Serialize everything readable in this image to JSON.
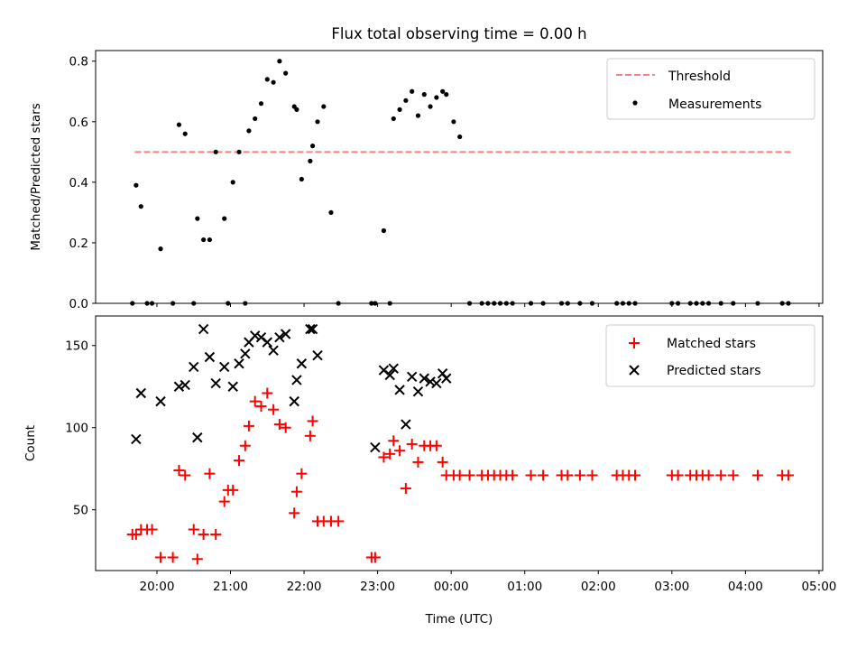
{
  "chart_data": [
    {
      "type": "scatter",
      "title": "Flux total observing time = 0.00 h",
      "ylabel": "Matched/Predicted stars",
      "xlabel": "",
      "ylim": [
        0,
        0.835
      ],
      "yticks": [
        0.0,
        0.2,
        0.4,
        0.6,
        0.8
      ],
      "ytick_labels": [
        "0.0",
        "0.2",
        "0.4",
        "0.6",
        "0.8"
      ],
      "grid": false,
      "legend_position": "top-right",
      "threshold": {
        "name": "Threshold",
        "value": 0.5,
        "x_start": "19:42",
        "x_end": "04:37",
        "color": "#ff7f7f",
        "style": "dashed"
      },
      "series": [
        {
          "name": "Measurements",
          "color": "#000000",
          "marker": "dot",
          "points": [
            [
              "19:40",
              0.0
            ],
            [
              "19:43",
              0.39
            ],
            [
              "19:47",
              0.32
            ],
            [
              "19:52",
              0.0
            ],
            [
              "19:56",
              0.0
            ],
            [
              "20:03",
              0.18
            ],
            [
              "20:13",
              0.0
            ],
            [
              "20:18",
              0.59
            ],
            [
              "20:23",
              0.56
            ],
            [
              "20:30",
              0.0
            ],
            [
              "20:33",
              0.28
            ],
            [
              "20:38",
              0.21
            ],
            [
              "20:43",
              0.21
            ],
            [
              "20:48",
              0.5
            ],
            [
              "20:55",
              0.28
            ],
            [
              "20:58",
              0.0
            ],
            [
              "21:02",
              0.4
            ],
            [
              "21:07",
              0.5
            ],
            [
              "21:12",
              0.0
            ],
            [
              "21:15",
              0.57
            ],
            [
              "21:20",
              0.61
            ],
            [
              "21:25",
              0.66
            ],
            [
              "21:30",
              0.74
            ],
            [
              "21:35",
              0.73
            ],
            [
              "21:40",
              0.8
            ],
            [
              "21:45",
              0.76
            ],
            [
              "21:52",
              0.65
            ],
            [
              "21:54",
              0.64
            ],
            [
              "21:58",
              0.41
            ],
            [
              "22:05",
              0.47
            ],
            [
              "22:07",
              0.52
            ],
            [
              "22:11",
              0.6
            ],
            [
              "22:16",
              0.65
            ],
            [
              "22:22",
              0.3
            ],
            [
              "22:28",
              0.0
            ],
            [
              "22:55",
              0.0
            ],
            [
              "22:58",
              0.0
            ],
            [
              "23:05",
              0.24
            ],
            [
              "23:10",
              0.0
            ],
            [
              "23:13",
              0.61
            ],
            [
              "23:18",
              0.64
            ],
            [
              "23:23",
              0.67
            ],
            [
              "23:28",
              0.7
            ],
            [
              "23:33",
              0.62
            ],
            [
              "23:38",
              0.69
            ],
            [
              "23:43",
              0.65
            ],
            [
              "23:48",
              0.68
            ],
            [
              "23:53",
              0.7
            ],
            [
              "23:56",
              0.69
            ],
            [
              "00:02",
              0.6
            ],
            [
              "00:07",
              0.55
            ],
            [
              "00:15",
              0.0
            ],
            [
              "00:25",
              0.0
            ],
            [
              "00:30",
              0.0
            ],
            [
              "00:35",
              0.0
            ],
            [
              "00:40",
              0.0
            ],
            [
              "00:45",
              0.0
            ],
            [
              "00:50",
              0.0
            ],
            [
              "01:05",
              0.0
            ],
            [
              "01:15",
              0.0
            ],
            [
              "01:30",
              0.0
            ],
            [
              "01:35",
              0.0
            ],
            [
              "01:45",
              0.0
            ],
            [
              "01:55",
              0.0
            ],
            [
              "02:15",
              0.0
            ],
            [
              "02:20",
              0.0
            ],
            [
              "02:25",
              0.0
            ],
            [
              "02:30",
              0.0
            ],
            [
              "03:00",
              0.0
            ],
            [
              "03:05",
              0.0
            ],
            [
              "03:15",
              0.0
            ],
            [
              "03:20",
              0.0
            ],
            [
              "03:25",
              0.0
            ],
            [
              "03:30",
              0.0
            ],
            [
              "03:40",
              0.0
            ],
            [
              "03:50",
              0.0
            ],
            [
              "04:10",
              0.0
            ],
            [
              "04:30",
              0.0
            ],
            [
              "04:35",
              0.0
            ]
          ]
        }
      ]
    },
    {
      "type": "scatter",
      "title": "",
      "xlabel": "Time (UTC)",
      "ylabel": "Count",
      "ylim": [
        13,
        168
      ],
      "yticks": [
        50,
        100,
        150
      ],
      "ytick_labels": [
        "50",
        "100",
        "150"
      ],
      "xlim": [
        "19:10",
        "05:03"
      ],
      "xticks": [
        "20:00",
        "21:00",
        "22:00",
        "23:00",
        "00:00",
        "01:00",
        "02:00",
        "03:00",
        "04:00",
        "05:00"
      ],
      "xtick_labels": [
        "20:00",
        "21:00",
        "22:00",
        "23:00",
        "00:00",
        "01:00",
        "02:00",
        "03:00",
        "04:00",
        "05:00"
      ],
      "grid": false,
      "legend_position": "top-right",
      "series": [
        {
          "name": "Matched stars",
          "color": "#ff0000",
          "marker": "plus",
          "points": [
            [
              "19:40",
              35
            ],
            [
              "19:43",
              35
            ],
            [
              "19:47",
              38
            ],
            [
              "19:52",
              38
            ],
            [
              "19:56",
              38
            ],
            [
              "20:03",
              21
            ],
            [
              "20:13",
              21
            ],
            [
              "20:18",
              74
            ],
            [
              "20:23",
              71
            ],
            [
              "20:30",
              38
            ],
            [
              "20:33",
              20
            ],
            [
              "20:38",
              35
            ],
            [
              "20:43",
              72
            ],
            [
              "20:48",
              35
            ],
            [
              "20:55",
              55
            ],
            [
              "20:58",
              62
            ],
            [
              "21:02",
              62
            ],
            [
              "21:07",
              80
            ],
            [
              "21:12",
              89
            ],
            [
              "21:15",
              101
            ],
            [
              "21:20",
              116
            ],
            [
              "21:25",
              113
            ],
            [
              "21:30",
              121
            ],
            [
              "21:35",
              111
            ],
            [
              "21:40",
              102
            ],
            [
              "21:45",
              100
            ],
            [
              "21:52",
              48
            ],
            [
              "21:54",
              61
            ],
            [
              "21:58",
              72
            ],
            [
              "22:05",
              95
            ],
            [
              "22:07",
              104
            ],
            [
              "22:11",
              43
            ],
            [
              "22:16",
              43
            ],
            [
              "22:22",
              43
            ],
            [
              "22:28",
              43
            ],
            [
              "22:55",
              21
            ],
            [
              "22:58",
              21
            ],
            [
              "23:05",
              82
            ],
            [
              "23:10",
              84
            ],
            [
              "23:13",
              92
            ],
            [
              "23:18",
              86
            ],
            [
              "23:23",
              63
            ],
            [
              "23:28",
              90
            ],
            [
              "23:33",
              79
            ],
            [
              "23:38",
              89
            ],
            [
              "23:43",
              89
            ],
            [
              "23:48",
              89
            ],
            [
              "23:53",
              79
            ],
            [
              "23:56",
              71
            ],
            [
              "00:02",
              71
            ],
            [
              "00:07",
              71
            ],
            [
              "00:15",
              71
            ],
            [
              "00:25",
              71
            ],
            [
              "00:30",
              71
            ],
            [
              "00:35",
              71
            ],
            [
              "00:40",
              71
            ],
            [
              "00:45",
              71
            ],
            [
              "00:50",
              71
            ],
            [
              "01:05",
              71
            ],
            [
              "01:15",
              71
            ],
            [
              "01:30",
              71
            ],
            [
              "01:35",
              71
            ],
            [
              "01:45",
              71
            ],
            [
              "01:55",
              71
            ],
            [
              "02:15",
              71
            ],
            [
              "02:20",
              71
            ],
            [
              "02:25",
              71
            ],
            [
              "02:30",
              71
            ],
            [
              "03:00",
              71
            ],
            [
              "03:05",
              71
            ],
            [
              "03:15",
              71
            ],
            [
              "03:20",
              71
            ],
            [
              "03:25",
              71
            ],
            [
              "03:30",
              71
            ],
            [
              "03:40",
              71
            ],
            [
              "03:50",
              71
            ],
            [
              "04:10",
              71
            ],
            [
              "04:30",
              71
            ],
            [
              "04:35",
              71
            ]
          ]
        },
        {
          "name": "Predicted stars",
          "color": "#000000",
          "marker": "cross",
          "points": [
            [
              "19:43",
              93
            ],
            [
              "19:47",
              121
            ],
            [
              "20:03",
              116
            ],
            [
              "20:18",
              125
            ],
            [
              "20:23",
              126
            ],
            [
              "20:30",
              137
            ],
            [
              "20:33",
              94
            ],
            [
              "20:38",
              160
            ],
            [
              "20:43",
              143
            ],
            [
              "20:48",
              127
            ],
            [
              "20:55",
              137
            ],
            [
              "21:02",
              125
            ],
            [
              "21:07",
              139
            ],
            [
              "21:12",
              145
            ],
            [
              "21:15",
              152
            ],
            [
              "21:20",
              156
            ],
            [
              "21:25",
              155
            ],
            [
              "21:30",
              152
            ],
            [
              "21:35",
              147
            ],
            [
              "21:40",
              155
            ],
            [
              "21:45",
              157
            ],
            [
              "21:52",
              116
            ],
            [
              "21:54",
              129
            ],
            [
              "21:58",
              139
            ],
            [
              "22:05",
              160
            ],
            [
              "22:07",
              160
            ],
            [
              "22:11",
              144
            ],
            [
              "22:58",
              88
            ],
            [
              "23:05",
              135
            ],
            [
              "23:10",
              132
            ],
            [
              "23:13",
              136
            ],
            [
              "23:18",
              123
            ],
            [
              "23:23",
              102
            ],
            [
              "23:28",
              131
            ],
            [
              "23:33",
              122
            ],
            [
              "23:38",
              130
            ],
            [
              "23:43",
              128
            ],
            [
              "23:48",
              127
            ],
            [
              "23:53",
              133
            ],
            [
              "23:56",
              130
            ]
          ]
        }
      ]
    }
  ]
}
